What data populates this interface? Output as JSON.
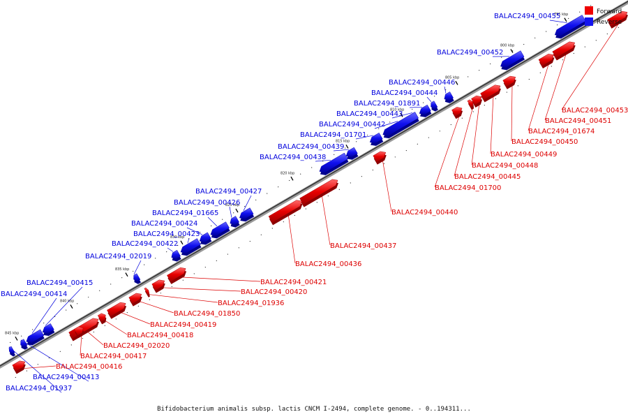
{
  "caption": "Bifidobacterium animalis subsp. lactis CNCM I-2494, complete genome. - 0..194311...",
  "legend": [
    {
      "label": "Forward",
      "color": "#ee0000"
    },
    {
      "label": "Reverse",
      "color": "#1414ee"
    }
  ],
  "ticks": [
    "795 kbp",
    "800 kbp",
    "805 kbp",
    "810 kbp",
    "815 kbp",
    "820 kbp",
    "825 kbp",
    "830 kbp",
    "835 kbp",
    "840 kbp",
    "845 kbp"
  ],
  "genes": [
    {
      "name": "BALAC2494_00455",
      "strand": "reverse"
    },
    {
      "name": "BALAC2494_00452",
      "strand": "reverse"
    },
    {
      "name": "BALAC2494_00446",
      "strand": "reverse"
    },
    {
      "name": "BALAC2494_00444",
      "strand": "reverse"
    },
    {
      "name": "BALAC2494_01891",
      "strand": "reverse"
    },
    {
      "name": "BALAC2494_00443",
      "strand": "reverse"
    },
    {
      "name": "BALAC2494_00442",
      "strand": "reverse"
    },
    {
      "name": "BALAC2494_01701",
      "strand": "reverse"
    },
    {
      "name": "BALAC2494_00439",
      "strand": "reverse"
    },
    {
      "name": "BALAC2494_00438",
      "strand": "reverse"
    },
    {
      "name": "BALAC2494_00427",
      "strand": "reverse"
    },
    {
      "name": "BALAC2494_00426",
      "strand": "reverse"
    },
    {
      "name": "BALAC2494_01665",
      "strand": "reverse"
    },
    {
      "name": "BALAC2494_00424",
      "strand": "reverse"
    },
    {
      "name": "BALAC2494_00423",
      "strand": "reverse"
    },
    {
      "name": "BALAC2494_00422",
      "strand": "reverse"
    },
    {
      "name": "BALAC2494_02019",
      "strand": "reverse"
    },
    {
      "name": "BALAC2494_00415",
      "strand": "reverse"
    },
    {
      "name": "BALAC2494_00414",
      "strand": "reverse"
    },
    {
      "name": "BALAC2494_00413",
      "strand": "reverse"
    },
    {
      "name": "BALAC2494_01937",
      "strand": "reverse"
    },
    {
      "name": "BALAC2494_00453",
      "strand": "forward"
    },
    {
      "name": "BALAC2494_00451",
      "strand": "forward"
    },
    {
      "name": "BALAC2494_01674",
      "strand": "forward"
    },
    {
      "name": "BALAC2494_00450",
      "strand": "forward"
    },
    {
      "name": "BALAC2494_00449",
      "strand": "forward"
    },
    {
      "name": "BALAC2494_00448",
      "strand": "forward"
    },
    {
      "name": "BALAC2494_00445",
      "strand": "forward"
    },
    {
      "name": "BALAC2494_01700",
      "strand": "forward"
    },
    {
      "name": "BALAC2494_00440",
      "strand": "forward"
    },
    {
      "name": "BALAC2494_00437",
      "strand": "forward"
    },
    {
      "name": "BALAC2494_00436",
      "strand": "forward"
    },
    {
      "name": "BALAC2494_00421",
      "strand": "forward"
    },
    {
      "name": "BALAC2494_00420",
      "strand": "forward"
    },
    {
      "name": "BALAC2494_01936",
      "strand": "forward"
    },
    {
      "name": "BALAC2494_01850",
      "strand": "forward"
    },
    {
      "name": "BALAC2494_00419",
      "strand": "forward"
    },
    {
      "name": "BALAC2494_00418",
      "strand": "forward"
    },
    {
      "name": "BALAC2494_02020",
      "strand": "forward"
    },
    {
      "name": "BALAC2494_00417",
      "strand": "forward"
    },
    {
      "name": "BALAC2494_00416",
      "strand": "forward"
    }
  ]
}
